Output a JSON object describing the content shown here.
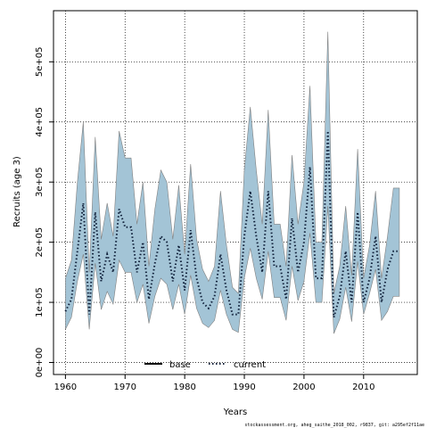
{
  "chart_data": {
    "type": "line",
    "xlabel": "Years",
    "ylabel": "Recruits (age 3)",
    "xlim": [
      1958,
      2019
    ],
    "ylim": [
      -20000,
      585000
    ],
    "x_ticks": [
      1960,
      1970,
      1980,
      1990,
      2000,
      2010
    ],
    "x_tick_labels": [
      "1960",
      "1970",
      "1980",
      "1990",
      "2000",
      "2010"
    ],
    "y_ticks": [
      0,
      100000,
      200000,
      300000,
      400000,
      500000
    ],
    "y_tick_labels": [
      "0e+00",
      "1e+05",
      "2e+05",
      "3e+05",
      "4e+05",
      "5e+05"
    ],
    "grid": "dotted",
    "legend": {
      "placement": "bottom",
      "entries": [
        {
          "label": "base",
          "style": "solid",
          "color": "#000000"
        },
        {
          "label": "current",
          "style": "dotted",
          "color": "#1a5e80"
        }
      ]
    },
    "x": [
      1960,
      1961,
      1962,
      1963,
      1964,
      1965,
      1966,
      1967,
      1968,
      1969,
      1970,
      1971,
      1972,
      1973,
      1974,
      1975,
      1976,
      1977,
      1978,
      1979,
      1980,
      1981,
      1982,
      1983,
      1984,
      1985,
      1986,
      1987,
      1988,
      1989,
      1990,
      1991,
      1992,
      1993,
      1994,
      1995,
      1996,
      1997,
      1998,
      1999,
      2000,
      2001,
      2002,
      2003,
      2004,
      2005,
      2006,
      2007,
      2008,
      2009,
      2010,
      2011,
      2012,
      2013,
      2014,
      2015,
      2016
    ],
    "series": [
      {
        "name": "current",
        "color": "#1a5e80",
        "values": [
          85000,
          105000,
          185000,
          265000,
          80000,
          250000,
          135000,
          180000,
          150000,
          255000,
          225000,
          225000,
          150000,
          200000,
          105000,
          165000,
          210000,
          200000,
          135000,
          195000,
          120000,
          220000,
          140000,
          100000,
          90000,
          110000,
          180000,
          120000,
          80000,
          80000,
          210000,
          285000,
          210000,
          150000,
          285000,
          160000,
          160000,
          105000,
          240000,
          150000,
          200000,
          325000,
          140000,
          140000,
          385000,
          75000,
          110000,
          185000,
          100000,
          250000,
          100000,
          140000,
          210000,
          100000,
          155000,
          185000,
          185000
        ]
      },
      {
        "name": "ci_upper",
        "values": [
          140000,
          170000,
          300000,
          400000,
          150000,
          375000,
          205000,
          265000,
          210000,
          385000,
          340000,
          340000,
          230000,
          300000,
          160000,
          255000,
          320000,
          300000,
          205000,
          295000,
          180000,
          330000,
          205000,
          155000,
          135000,
          160000,
          285000,
          195000,
          125000,
          115000,
          320000,
          425000,
          320000,
          230000,
          420000,
          230000,
          230000,
          160000,
          345000,
          230000,
          300000,
          460000,
          200000,
          200000,
          550000,
          115000,
          160000,
          260000,
          145000,
          355000,
          140000,
          195000,
          285000,
          140000,
          210000,
          290000,
          290000
        ]
      },
      {
        "name": "ci_lower",
        "values": [
          55000,
          75000,
          135000,
          180000,
          55000,
          165000,
          88000,
          118000,
          97000,
          170000,
          150000,
          150000,
          100000,
          130000,
          65000,
          110000,
          140000,
          130000,
          88000,
          130000,
          80000,
          145000,
          90000,
          65000,
          58000,
          70000,
          120000,
          80000,
          55000,
          50000,
          140000,
          190000,
          140000,
          105000,
          185000,
          108000,
          108000,
          70000,
          160000,
          103000,
          135000,
          215000,
          100000,
          100000,
          260000,
          48000,
          72000,
          125000,
          68000,
          168000,
          80000,
          115000,
          155000,
          70000,
          85000,
          110000,
          110000
        ]
      }
    ]
  },
  "footer": "stockassessment.org, aheg_saithe_2018_002, r9837, git: a295ef2f11ae"
}
